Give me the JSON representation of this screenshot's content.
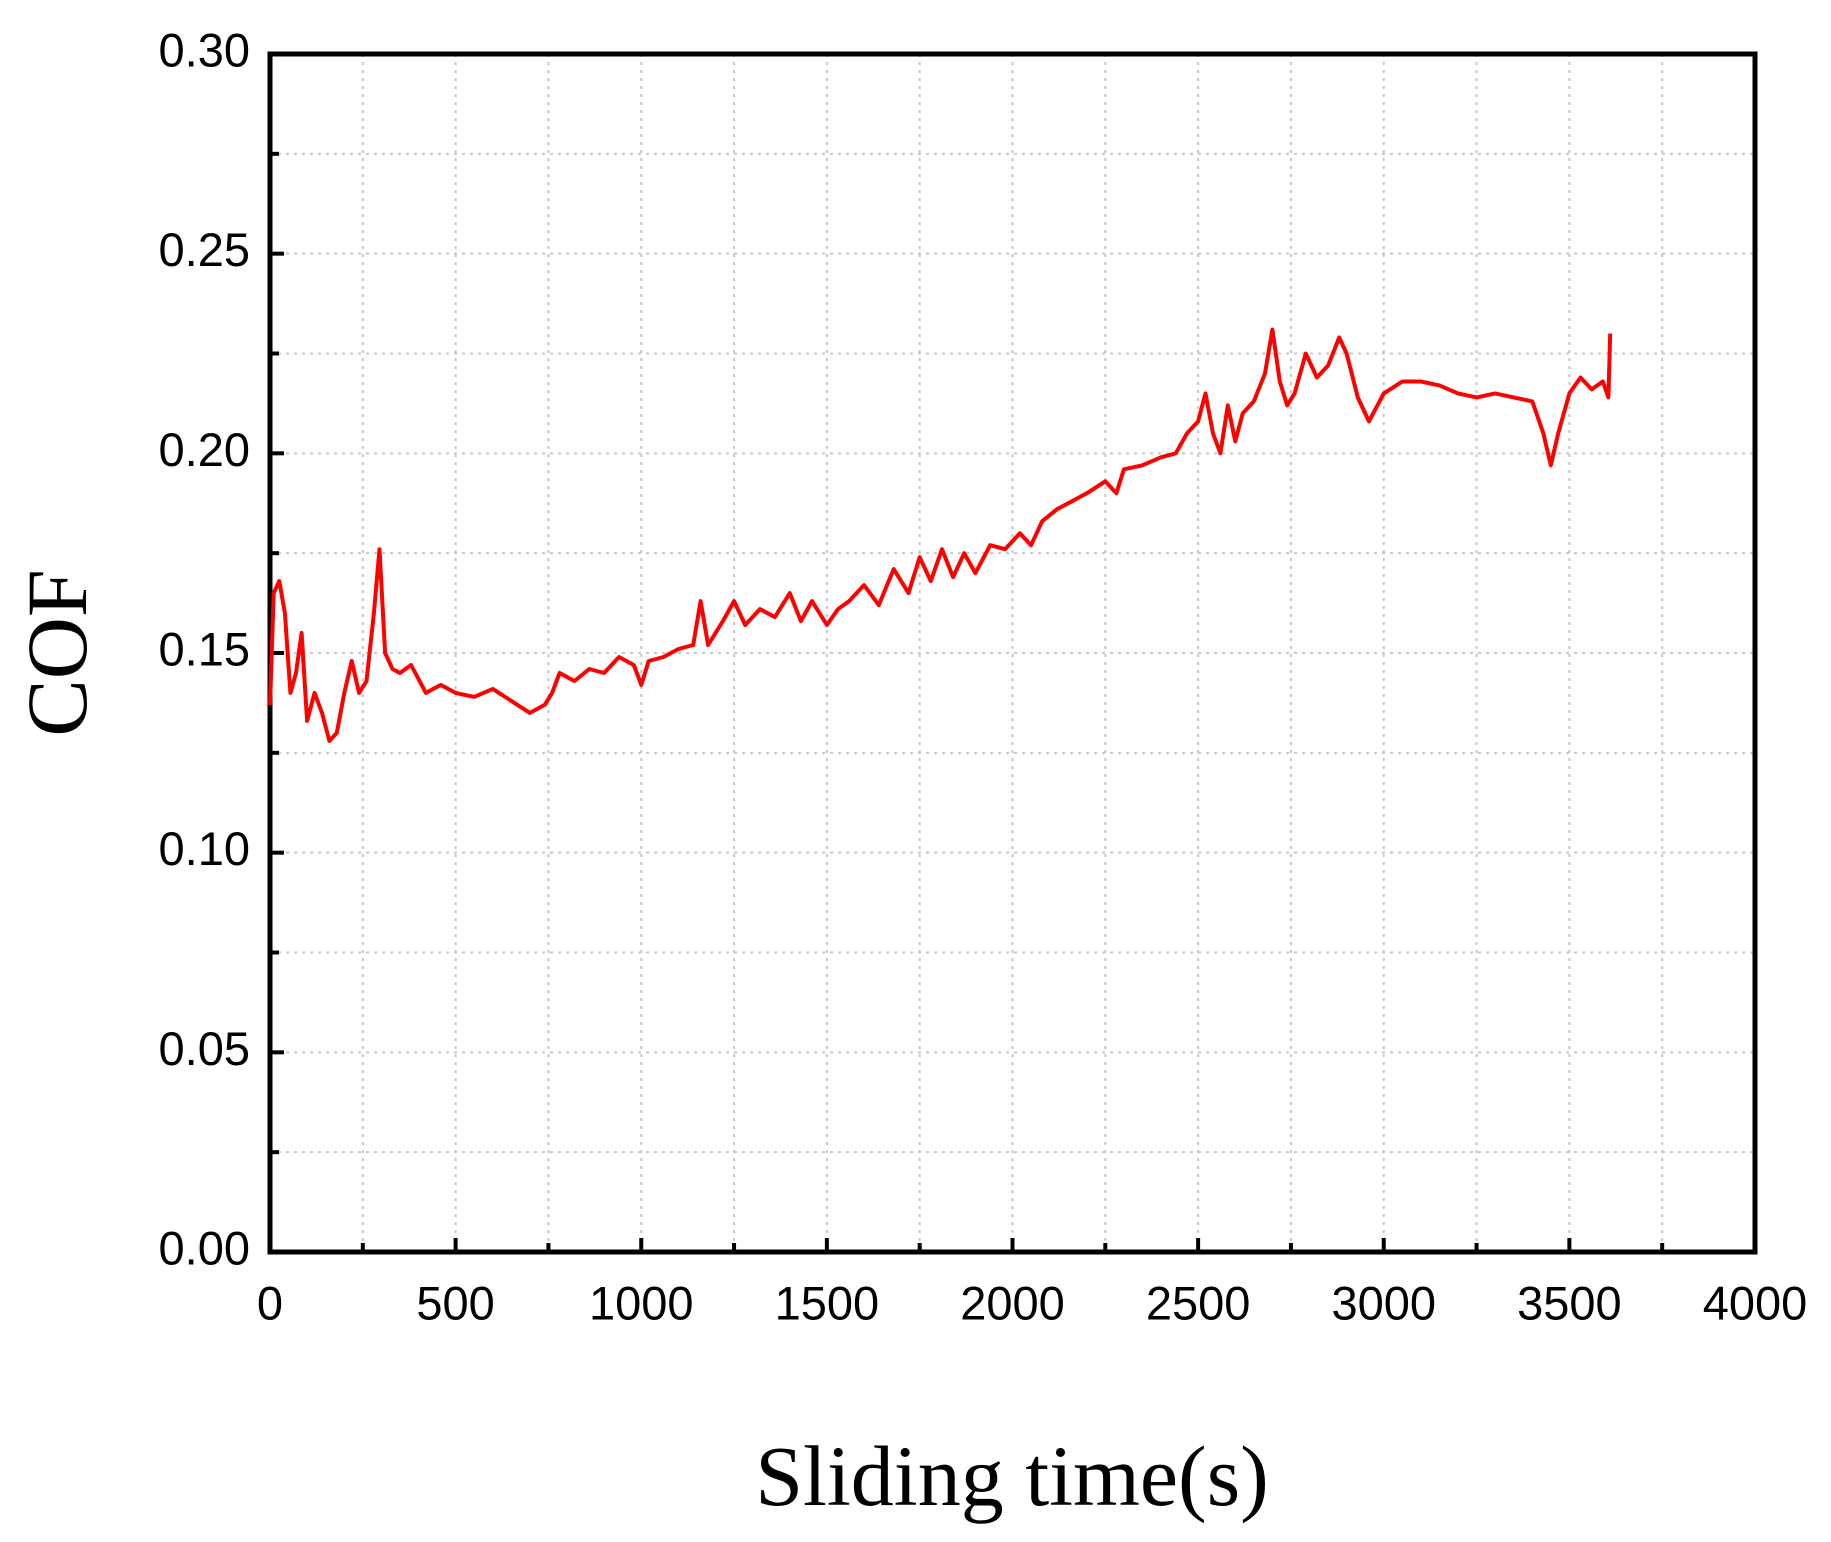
{
  "chart_data": {
    "type": "line",
    "xlabel": "Sliding time(s)",
    "ylabel": "COF",
    "xlim": [
      0,
      4000
    ],
    "xticks": [
      0,
      500,
      1000,
      1500,
      2000,
      2500,
      3000,
      3500,
      4000
    ],
    "ylim": [
      0,
      0.3
    ],
    "yticks": [
      {
        "value": 0,
        "label": "0.00"
      },
      {
        "value": 0.05,
        "label": "0.05"
      },
      {
        "value": 0.1,
        "label": "0.10"
      },
      {
        "value": 0.15,
        "label": "0.15"
      },
      {
        "value": 0.2,
        "label": "0.20"
      },
      {
        "value": 0.25,
        "label": "0.25"
      },
      {
        "value": 0.3,
        "label": "0.30"
      }
    ],
    "grid": true,
    "color": "#ff0000",
    "x": [
      0,
      10,
      25,
      40,
      55,
      70,
      85,
      100,
      120,
      140,
      160,
      180,
      200,
      220,
      240,
      260,
      280,
      295,
      310,
      330,
      350,
      380,
      420,
      460,
      500,
      550,
      600,
      650,
      700,
      740,
      760,
      780,
      820,
      860,
      900,
      940,
      980,
      1000,
      1020,
      1060,
      1100,
      1140,
      1160,
      1180,
      1220,
      1250,
      1280,
      1320,
      1360,
      1400,
      1430,
      1460,
      1500,
      1530,
      1560,
      1600,
      1640,
      1680,
      1720,
      1750,
      1780,
      1810,
      1840,
      1870,
      1900,
      1940,
      1980,
      2020,
      2050,
      2080,
      2120,
      2160,
      2200,
      2250,
      2280,
      2300,
      2350,
      2400,
      2440,
      2470,
      2500,
      2520,
      2540,
      2560,
      2580,
      2600,
      2620,
      2650,
      2680,
      2700,
      2720,
      2740,
      2760,
      2790,
      2820,
      2850,
      2880,
      2900,
      2930,
      2960,
      3000,
      3050,
      3100,
      3150,
      3200,
      3250,
      3300,
      3350,
      3400,
      3430,
      3450,
      3470,
      3500,
      3530,
      3560,
      3590,
      3605,
      3610
    ],
    "values": [
      0.137,
      0.165,
      0.168,
      0.16,
      0.14,
      0.145,
      0.155,
      0.133,
      0.14,
      0.135,
      0.128,
      0.13,
      0.14,
      0.148,
      0.14,
      0.143,
      0.16,
      0.176,
      0.15,
      0.146,
      0.145,
      0.147,
      0.14,
      0.142,
      0.14,
      0.139,
      0.141,
      0.138,
      0.135,
      0.137,
      0.14,
      0.145,
      0.143,
      0.146,
      0.145,
      0.149,
      0.147,
      0.142,
      0.148,
      0.149,
      0.151,
      0.152,
      0.163,
      0.152,
      0.158,
      0.163,
      0.157,
      0.161,
      0.159,
      0.165,
      0.158,
      0.163,
      0.157,
      0.161,
      0.163,
      0.167,
      0.162,
      0.171,
      0.165,
      0.174,
      0.168,
      0.176,
      0.169,
      0.175,
      0.17,
      0.177,
      0.176,
      0.18,
      0.177,
      0.183,
      0.186,
      0.188,
      0.19,
      0.193,
      0.19,
      0.196,
      0.197,
      0.199,
      0.2,
      0.205,
      0.208,
      0.215,
      0.205,
      0.2,
      0.212,
      0.203,
      0.21,
      0.213,
      0.22,
      0.231,
      0.218,
      0.212,
      0.215,
      0.225,
      0.219,
      0.222,
      0.229,
      0.225,
      0.214,
      0.208,
      0.215,
      0.218,
      0.218,
      0.217,
      0.215,
      0.214,
      0.215,
      0.214,
      0.213,
      0.205,
      0.197,
      0.205,
      0.215,
      0.219,
      0.216,
      0.218,
      0.214,
      0.23
    ]
  }
}
